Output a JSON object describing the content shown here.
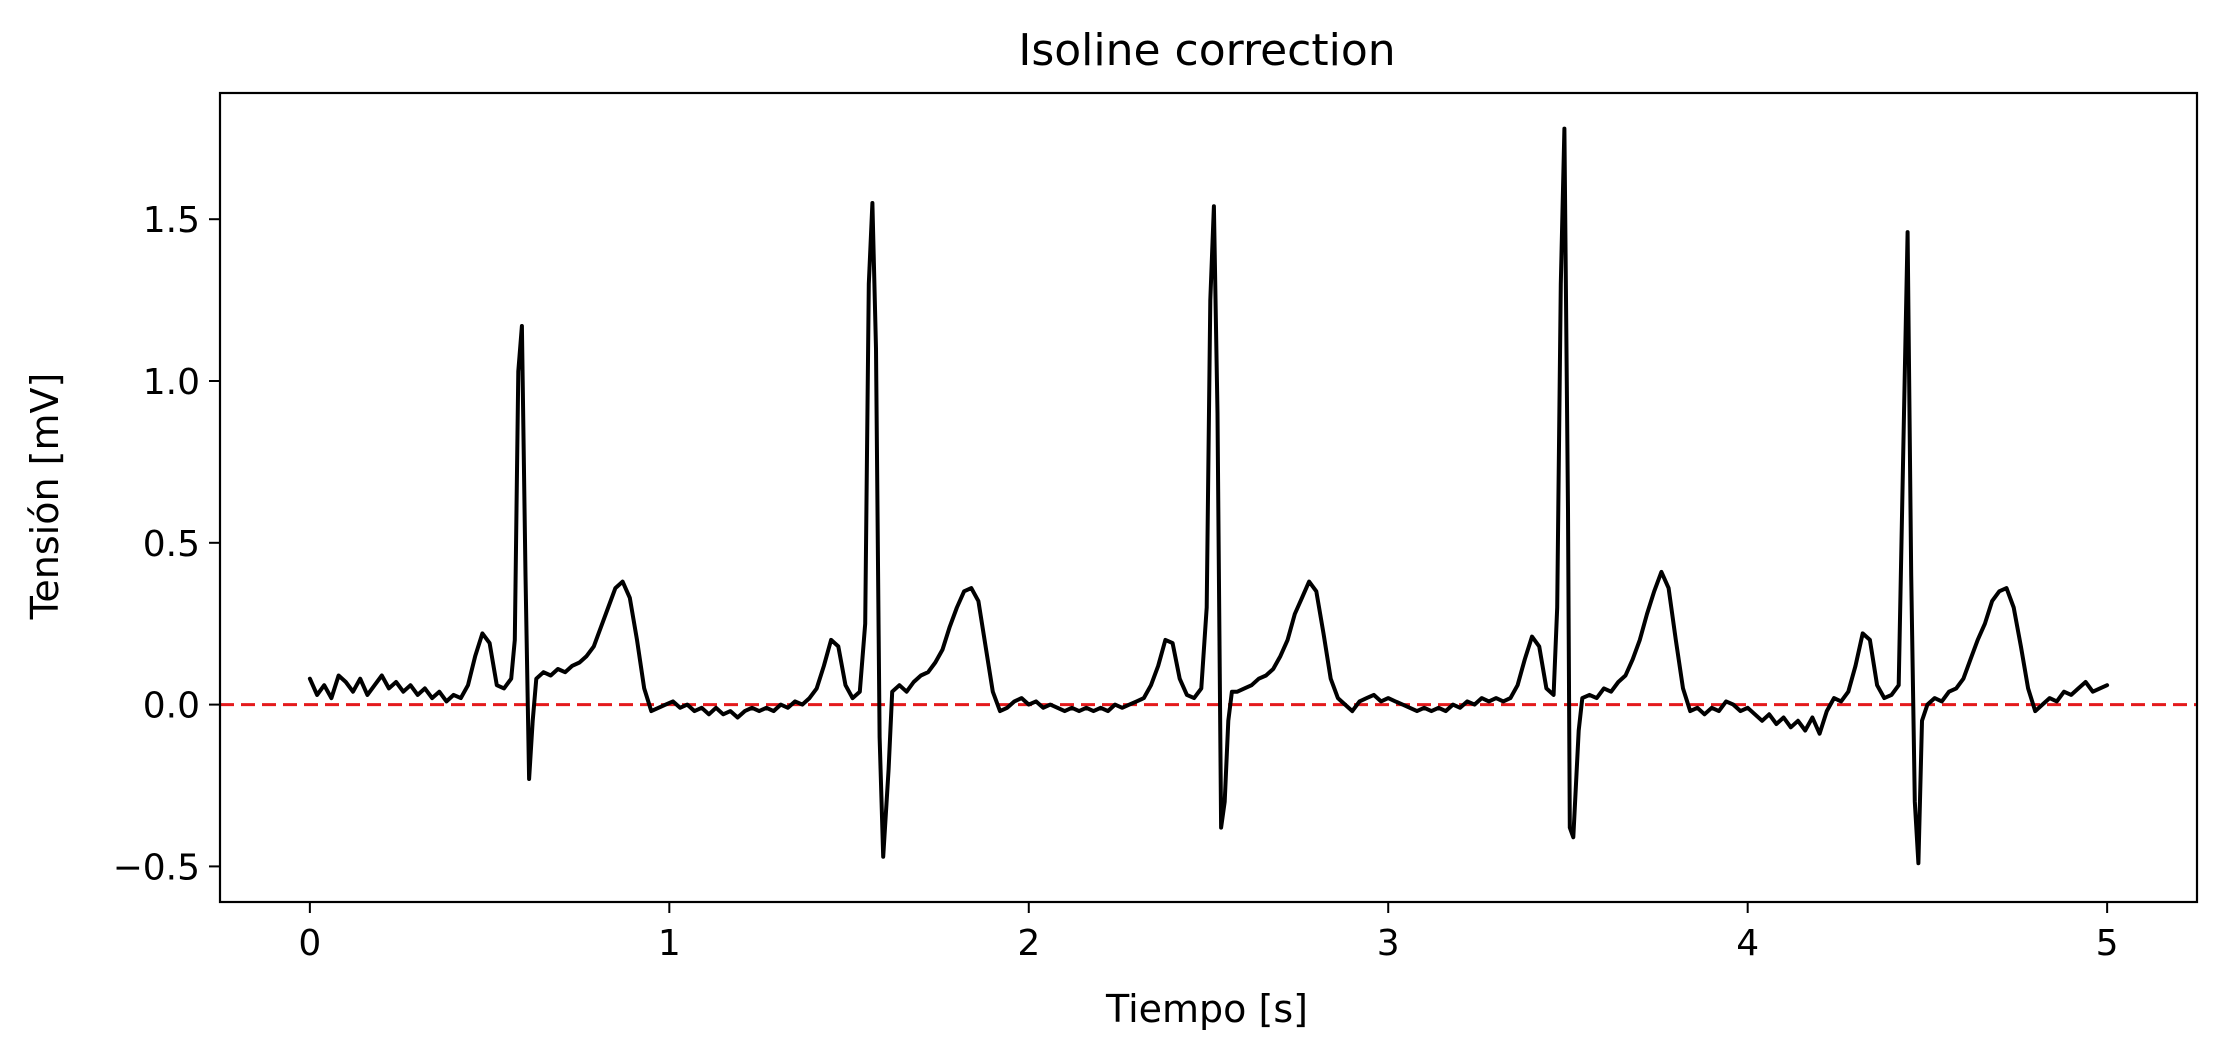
{
  "chart_data": {
    "type": "line",
    "title": "Isoline correction",
    "xlabel": "Tiempo [s]",
    "ylabel": "Tensión [mV]",
    "xlim": [
      -0.25,
      5.25
    ],
    "ylim": [
      -0.61,
      1.89
    ],
    "x_ticks": [
      0,
      1,
      2,
      3,
      4,
      5
    ],
    "x_tick_labels": [
      "0",
      "1",
      "2",
      "3",
      "4",
      "5"
    ],
    "y_ticks": [
      -0.5,
      0.0,
      0.5,
      1.0,
      1.5
    ],
    "y_tick_labels": [
      "−0.5",
      "0.0",
      "0.5",
      "1.0",
      "1.5"
    ],
    "grid": false,
    "legend": "none",
    "baseline": {
      "y": 0.0,
      "color": "#e41a1c",
      "style": "dashed"
    },
    "series": [
      {
        "color": "#000000",
        "points": [
          [
            0.0,
            0.08
          ],
          [
            0.02,
            0.03
          ],
          [
            0.04,
            0.06
          ],
          [
            0.06,
            0.02
          ],
          [
            0.08,
            0.09
          ],
          [
            0.1,
            0.07
          ],
          [
            0.12,
            0.04
          ],
          [
            0.14,
            0.08
          ],
          [
            0.16,
            0.03
          ],
          [
            0.18,
            0.06
          ],
          [
            0.2,
            0.09
          ],
          [
            0.22,
            0.05
          ],
          [
            0.24,
            0.07
          ],
          [
            0.26,
            0.04
          ],
          [
            0.28,
            0.06
          ],
          [
            0.3,
            0.03
          ],
          [
            0.32,
            0.05
          ],
          [
            0.34,
            0.02
          ],
          [
            0.36,
            0.04
          ],
          [
            0.38,
            0.01
          ],
          [
            0.4,
            0.03
          ],
          [
            0.42,
            0.02
          ],
          [
            0.44,
            0.06
          ],
          [
            0.46,
            0.15
          ],
          [
            0.48,
            0.22
          ],
          [
            0.5,
            0.19
          ],
          [
            0.52,
            0.06
          ],
          [
            0.54,
            0.05
          ],
          [
            0.56,
            0.08
          ],
          [
            0.57,
            0.2
          ],
          [
            0.58,
            1.03
          ],
          [
            0.59,
            1.17
          ],
          [
            0.6,
            0.4
          ],
          [
            0.61,
            -0.23
          ],
          [
            0.62,
            -0.05
          ],
          [
            0.63,
            0.08
          ],
          [
            0.65,
            0.1
          ],
          [
            0.67,
            0.09
          ],
          [
            0.69,
            0.11
          ],
          [
            0.71,
            0.1
          ],
          [
            0.73,
            0.12
          ],
          [
            0.75,
            0.13
          ],
          [
            0.77,
            0.15
          ],
          [
            0.79,
            0.18
          ],
          [
            0.81,
            0.24
          ],
          [
            0.83,
            0.3
          ],
          [
            0.85,
            0.36
          ],
          [
            0.87,
            0.38
          ],
          [
            0.89,
            0.33
          ],
          [
            0.91,
            0.2
          ],
          [
            0.93,
            0.05
          ],
          [
            0.95,
            -0.02
          ],
          [
            0.97,
            -0.01
          ],
          [
            0.99,
            0.0
          ],
          [
            1.01,
            0.01
          ],
          [
            1.03,
            -0.01
          ],
          [
            1.05,
            0.0
          ],
          [
            1.07,
            -0.02
          ],
          [
            1.09,
            -0.01
          ],
          [
            1.11,
            -0.03
          ],
          [
            1.13,
            -0.01
          ],
          [
            1.15,
            -0.03
          ],
          [
            1.17,
            -0.02
          ],
          [
            1.19,
            -0.04
          ],
          [
            1.21,
            -0.02
          ],
          [
            1.23,
            -0.01
          ],
          [
            1.25,
            -0.02
          ],
          [
            1.27,
            -0.01
          ],
          [
            1.29,
            -0.02
          ],
          [
            1.31,
            0.0
          ],
          [
            1.33,
            -0.01
          ],
          [
            1.35,
            0.01
          ],
          [
            1.37,
            0.0
          ],
          [
            1.39,
            0.02
          ],
          [
            1.41,
            0.05
          ],
          [
            1.43,
            0.12
          ],
          [
            1.45,
            0.2
          ],
          [
            1.47,
            0.18
          ],
          [
            1.49,
            0.06
          ],
          [
            1.51,
            0.02
          ],
          [
            1.53,
            0.04
          ],
          [
            1.545,
            0.25
          ],
          [
            1.555,
            1.3
          ],
          [
            1.565,
            1.55
          ],
          [
            1.575,
            1.1
          ],
          [
            1.585,
            -0.1
          ],
          [
            1.595,
            -0.47
          ],
          [
            1.61,
            -0.2
          ],
          [
            1.62,
            0.04
          ],
          [
            1.64,
            0.06
          ],
          [
            1.66,
            0.04
          ],
          [
            1.68,
            0.07
          ],
          [
            1.7,
            0.09
          ],
          [
            1.72,
            0.1
          ],
          [
            1.74,
            0.13
          ],
          [
            1.76,
            0.17
          ],
          [
            1.78,
            0.24
          ],
          [
            1.8,
            0.3
          ],
          [
            1.82,
            0.35
          ],
          [
            1.84,
            0.36
          ],
          [
            1.86,
            0.32
          ],
          [
            1.88,
            0.18
          ],
          [
            1.9,
            0.04
          ],
          [
            1.92,
            -0.02
          ],
          [
            1.94,
            -0.01
          ],
          [
            1.96,
            0.01
          ],
          [
            1.98,
            0.02
          ],
          [
            2.0,
            0.0
          ],
          [
            2.02,
            0.01
          ],
          [
            2.04,
            -0.01
          ],
          [
            2.06,
            0.0
          ],
          [
            2.08,
            -0.01
          ],
          [
            2.1,
            -0.02
          ],
          [
            2.12,
            -0.01
          ],
          [
            2.14,
            -0.02
          ],
          [
            2.16,
            -0.01
          ],
          [
            2.18,
            -0.02
          ],
          [
            2.2,
            -0.01
          ],
          [
            2.22,
            -0.02
          ],
          [
            2.24,
            0.0
          ],
          [
            2.26,
            -0.01
          ],
          [
            2.28,
            0.0
          ],
          [
            2.3,
            0.01
          ],
          [
            2.32,
            0.02
          ],
          [
            2.34,
            0.06
          ],
          [
            2.36,
            0.12
          ],
          [
            2.38,
            0.2
          ],
          [
            2.4,
            0.19
          ],
          [
            2.42,
            0.08
          ],
          [
            2.44,
            0.03
          ],
          [
            2.46,
            0.02
          ],
          [
            2.48,
            0.05
          ],
          [
            2.495,
            0.3
          ],
          [
            2.505,
            1.25
          ],
          [
            2.515,
            1.54
          ],
          [
            2.525,
            0.9
          ],
          [
            2.535,
            -0.38
          ],
          [
            2.545,
            -0.3
          ],
          [
            2.555,
            -0.05
          ],
          [
            2.565,
            0.04
          ],
          [
            2.58,
            0.04
          ],
          [
            2.6,
            0.05
          ],
          [
            2.62,
            0.06
          ],
          [
            2.64,
            0.08
          ],
          [
            2.66,
            0.09
          ],
          [
            2.68,
            0.11
          ],
          [
            2.7,
            0.15
          ],
          [
            2.72,
            0.2
          ],
          [
            2.74,
            0.28
          ],
          [
            2.76,
            0.33
          ],
          [
            2.78,
            0.38
          ],
          [
            2.8,
            0.35
          ],
          [
            2.82,
            0.22
          ],
          [
            2.84,
            0.08
          ],
          [
            2.86,
            0.02
          ],
          [
            2.88,
            0.0
          ],
          [
            2.9,
            -0.02
          ],
          [
            2.92,
            0.01
          ],
          [
            2.94,
            0.02
          ],
          [
            2.96,
            0.03
          ],
          [
            2.98,
            0.01
          ],
          [
            3.0,
            0.02
          ],
          [
            3.02,
            0.01
          ],
          [
            3.04,
            0.0
          ],
          [
            3.06,
            -0.01
          ],
          [
            3.08,
            -0.02
          ],
          [
            3.1,
            -0.01
          ],
          [
            3.12,
            -0.02
          ],
          [
            3.14,
            -0.01
          ],
          [
            3.16,
            -0.02
          ],
          [
            3.18,
            0.0
          ],
          [
            3.2,
            -0.01
          ],
          [
            3.22,
            0.01
          ],
          [
            3.24,
            0.0
          ],
          [
            3.26,
            0.02
          ],
          [
            3.28,
            0.01
          ],
          [
            3.3,
            0.02
          ],
          [
            3.32,
            0.01
          ],
          [
            3.34,
            0.02
          ],
          [
            3.36,
            0.06
          ],
          [
            3.38,
            0.14
          ],
          [
            3.4,
            0.21
          ],
          [
            3.42,
            0.18
          ],
          [
            3.44,
            0.05
          ],
          [
            3.46,
            0.03
          ],
          [
            3.47,
            0.3
          ],
          [
            3.48,
            1.3
          ],
          [
            3.49,
            1.78
          ],
          [
            3.5,
            0.6
          ],
          [
            3.505,
            -0.38
          ],
          [
            3.515,
            -0.41
          ],
          [
            3.53,
            -0.08
          ],
          [
            3.54,
            0.02
          ],
          [
            3.56,
            0.03
          ],
          [
            3.58,
            0.02
          ],
          [
            3.6,
            0.05
          ],
          [
            3.62,
            0.04
          ],
          [
            3.64,
            0.07
          ],
          [
            3.66,
            0.09
          ],
          [
            3.68,
            0.14
          ],
          [
            3.7,
            0.2
          ],
          [
            3.72,
            0.28
          ],
          [
            3.74,
            0.35
          ],
          [
            3.76,
            0.41
          ],
          [
            3.78,
            0.36
          ],
          [
            3.8,
            0.2
          ],
          [
            3.82,
            0.05
          ],
          [
            3.84,
            -0.02
          ],
          [
            3.86,
            -0.01
          ],
          [
            3.88,
            -0.03
          ],
          [
            3.9,
            -0.01
          ],
          [
            3.92,
            -0.02
          ],
          [
            3.94,
            0.01
          ],
          [
            3.96,
            0.0
          ],
          [
            3.98,
            -0.02
          ],
          [
            4.0,
            -0.01
          ],
          [
            4.02,
            -0.03
          ],
          [
            4.04,
            -0.05
          ],
          [
            4.06,
            -0.03
          ],
          [
            4.08,
            -0.06
          ],
          [
            4.1,
            -0.04
          ],
          [
            4.12,
            -0.07
          ],
          [
            4.14,
            -0.05
          ],
          [
            4.16,
            -0.08
          ],
          [
            4.18,
            -0.04
          ],
          [
            4.2,
            -0.09
          ],
          [
            4.22,
            -0.02
          ],
          [
            4.24,
            0.02
          ],
          [
            4.26,
            0.01
          ],
          [
            4.28,
            0.04
          ],
          [
            4.3,
            0.12
          ],
          [
            4.32,
            0.22
          ],
          [
            4.34,
            0.2
          ],
          [
            4.36,
            0.06
          ],
          [
            4.38,
            0.02
          ],
          [
            4.4,
            0.03
          ],
          [
            4.42,
            0.06
          ],
          [
            4.435,
            0.9
          ],
          [
            4.445,
            1.46
          ],
          [
            4.455,
            0.4
          ],
          [
            4.465,
            -0.3
          ],
          [
            4.475,
            -0.49
          ],
          [
            4.485,
            -0.05
          ],
          [
            4.5,
            0.0
          ],
          [
            4.52,
            0.02
          ],
          [
            4.54,
            0.01
          ],
          [
            4.56,
            0.04
          ],
          [
            4.58,
            0.05
          ],
          [
            4.6,
            0.08
          ],
          [
            4.62,
            0.14
          ],
          [
            4.64,
            0.2
          ],
          [
            4.66,
            0.25
          ],
          [
            4.68,
            0.32
          ],
          [
            4.7,
            0.35
          ],
          [
            4.72,
            0.36
          ],
          [
            4.74,
            0.3
          ],
          [
            4.76,
            0.18
          ],
          [
            4.78,
            0.05
          ],
          [
            4.8,
            -0.02
          ],
          [
            4.82,
            0.0
          ],
          [
            4.84,
            0.02
          ],
          [
            4.86,
            0.01
          ],
          [
            4.88,
            0.04
          ],
          [
            4.9,
            0.03
          ],
          [
            4.92,
            0.05
          ],
          [
            4.94,
            0.07
          ],
          [
            4.96,
            0.04
          ],
          [
            4.98,
            0.05
          ],
          [
            5.0,
            0.06
          ]
        ]
      }
    ]
  }
}
